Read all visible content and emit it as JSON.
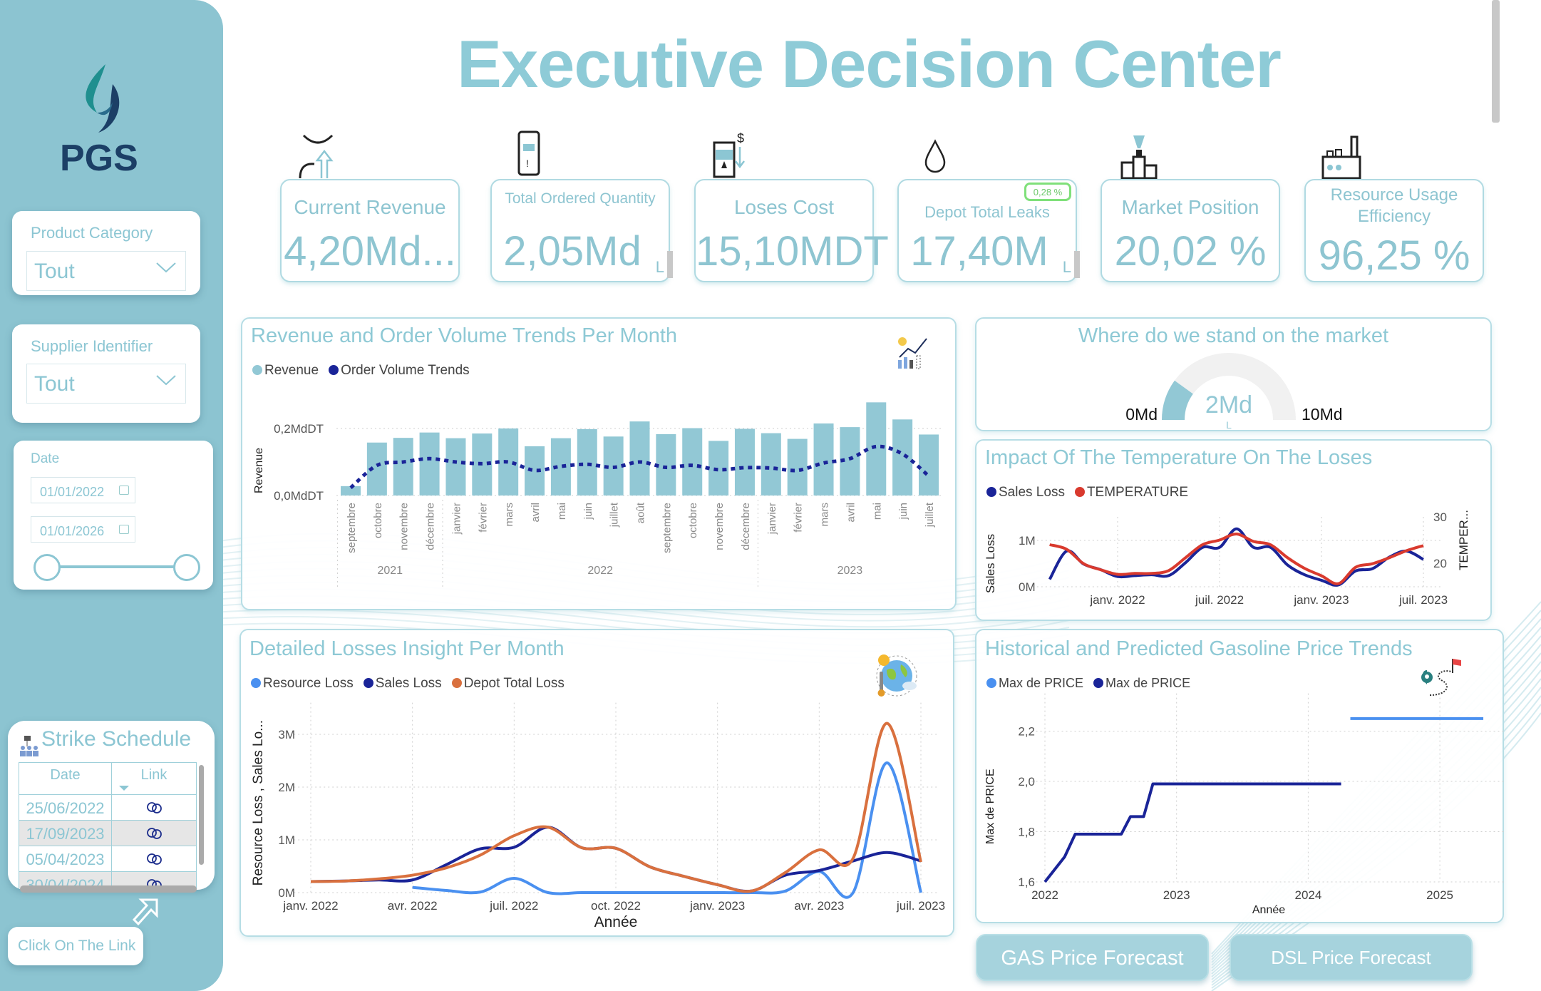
{
  "title": "Executive Decision Center",
  "brand": {
    "logo_text": "PGS"
  },
  "filters": {
    "product_category": {
      "label": "Product Category",
      "value": "Tout"
    },
    "supplier": {
      "label": "Supplier Identifier",
      "value": "Tout"
    },
    "date": {
      "label": "Date",
      "start": "01/01/2022",
      "end": "01/01/2026",
      "range_fraction": [
        0,
        1
      ]
    }
  },
  "strike_schedule": {
    "title": "Strike Schedule",
    "columns": [
      "Date",
      "Link"
    ],
    "rows": [
      {
        "date": "25/06/2022",
        "link_icon": "link-icon"
      },
      {
        "date": "17/09/2023",
        "link_icon": "link-icon"
      },
      {
        "date": "05/04/2023",
        "link_icon": "link-icon"
      }
    ],
    "hint_button": "Click On The Link"
  },
  "kpis": [
    {
      "label": "Current Revenue",
      "value": "4,20Md...",
      "icon": "revenue-up-icon"
    },
    {
      "label": "Total Ordered Quantity",
      "value": "2,05Md",
      "icon": "phone-order-icon"
    },
    {
      "label": "Loses Cost",
      "value": "15,10MDT",
      "icon": "fuel-cost-icon"
    },
    {
      "label": "Depot Total Leaks",
      "value": "17,40M",
      "badge": "0,28 %",
      "icon": "drop-icon"
    },
    {
      "label": "Market Position",
      "value": "20,02 %",
      "icon": "podium-trophy-icon"
    },
    {
      "label": "Resource Usage Efficiency",
      "value": "96,25 %",
      "icon": "factory-icon"
    }
  ],
  "colors": {
    "accent": "#8ec9d5",
    "navy": "#1a2498",
    "red": "#d93a2e",
    "orange": "#d9703e",
    "light_blue": "#4a90f0",
    "bar": "#92c8d5"
  },
  "buttons": {
    "gas": "GAS Price Forecast",
    "dsl": "DSL Price Forecast"
  },
  "chart_data": [
    {
      "type": "bar",
      "title": "Revenue and Order Volume Trends Per Month",
      "ylabel": "Revenue",
      "yticks": [
        "0,0MdDT",
        "0,2MdDT"
      ],
      "ylim": [
        0,
        0.3
      ],
      "legend": [
        "Revenue",
        "Order Volume Trends"
      ],
      "categories": [
        "septembre",
        "octobre",
        "novembre",
        "décembre",
        "janvier",
        "février",
        "mars",
        "avril",
        "mai",
        "juin",
        "juillet",
        "août",
        "septembre",
        "octobre",
        "novembre",
        "décembre",
        "janvier",
        "février",
        "mars",
        "avril",
        "mai",
        "juin",
        "juillet"
      ],
      "years": [
        {
          "label": "2021",
          "span": 4
        },
        {
          "label": "2022",
          "span": 12
        },
        {
          "label": "2023",
          "span": 7
        }
      ],
      "series": [
        {
          "name": "Revenue",
          "type": "bar",
          "values": [
            0.028,
            0.158,
            0.172,
            0.188,
            0.171,
            0.185,
            0.2,
            0.147,
            0.171,
            0.198,
            0.176,
            0.221,
            0.183,
            0.201,
            0.163,
            0.199,
            0.186,
            0.169,
            0.215,
            0.204,
            0.278,
            0.227,
            0.182
          ]
        },
        {
          "name": "Order Volume Trends",
          "type": "line-dashed",
          "values": [
            0.023,
            0.09,
            0.1,
            0.11,
            0.1,
            0.095,
            0.1,
            0.075,
            0.087,
            0.093,
            0.084,
            0.1,
            0.084,
            0.09,
            0.077,
            0.083,
            0.082,
            0.075,
            0.097,
            0.11,
            0.146,
            0.124,
            0.058
          ]
        }
      ],
      "grid": true,
      "legend_position": "top-left"
    },
    {
      "type": "gauge",
      "title": "Where do we stand on the market",
      "value": 2,
      "value_label": "2Md",
      "target_marker": "L",
      "min": 0,
      "max": 10,
      "min_label": "0Md",
      "max_label": "10Md"
    },
    {
      "type": "line",
      "title": "Impact Of The Temperature On The Loses",
      "legend": [
        "Sales Loss",
        "TEMPERATURE"
      ],
      "ylabel": "Sales Loss",
      "y2label": "TEMPER...",
      "yticks": [
        "0M",
        "1M"
      ],
      "y2ticks": [
        "20",
        "30"
      ],
      "xticks": [
        "janv. 2022",
        "juil. 2022",
        "janv. 2023",
        "juil. 2023"
      ],
      "x": [
        "2021-09",
        "2021-10",
        "2021-11",
        "2021-12",
        "2022-01",
        "2022-02",
        "2022-03",
        "2022-04",
        "2022-05",
        "2022-06",
        "2022-07",
        "2022-08",
        "2022-09",
        "2022-10",
        "2022-11",
        "2022-12",
        "2023-01",
        "2023-02",
        "2023-03",
        "2023-04",
        "2023-05",
        "2023-06",
        "2023-07"
      ],
      "series": [
        {
          "name": "Sales Loss",
          "axis": "left",
          "unit": "M",
          "values": [
            0.16,
            0.77,
            0.49,
            0.37,
            0.22,
            0.24,
            0.26,
            0.24,
            0.52,
            0.85,
            0.85,
            1.25,
            0.85,
            0.85,
            0.47,
            0.26,
            0.14,
            0.04,
            0.34,
            0.39,
            0.64,
            0.77,
            0.59
          ]
        },
        {
          "name": "TEMPERATURE",
          "axis": "right",
          "values": [
            24.0,
            23.0,
            19.9,
            18.6,
            17.6,
            17.8,
            17.8,
            18.4,
            21.2,
            24.0,
            25.0,
            26.3,
            24.7,
            24.0,
            21.2,
            18.9,
            17.3,
            15.6,
            19.1,
            19.9,
            21.2,
            22.7,
            23.8
          ]
        }
      ],
      "grid": true,
      "legend_position": "top-left"
    },
    {
      "type": "line",
      "title": "Detailed Losses Insight Per Month",
      "legend": [
        "Resource Loss",
        "Sales Loss",
        "Depot Total Loss"
      ],
      "ylabel": "Resource Loss , Sales Lo...",
      "xlabel": "Année",
      "yticks": [
        "0M",
        "1M",
        "2M",
        "3M"
      ],
      "xticks": [
        "janv. 2022",
        "avr. 2022",
        "juil. 2022",
        "oct. 2022",
        "janv. 2023",
        "avr. 2023",
        "juil. 2023"
      ],
      "x": [
        "2022-01",
        "2022-02",
        "2022-03",
        "2022-04",
        "2022-05",
        "2022-06",
        "2022-07",
        "2022-08",
        "2022-09",
        "2022-10",
        "2022-11",
        "2022-12",
        "2023-01",
        "2023-02",
        "2023-03",
        "2023-04",
        "2023-05",
        "2023-06",
        "2023-07"
      ],
      "series": [
        {
          "name": "Resource Loss",
          "unit": "M",
          "values": [
            null,
            null,
            null,
            0.1,
            0.04,
            0.01,
            0.27,
            0,
            0,
            0,
            0,
            0,
            0,
            0,
            0.03,
            0.4,
            0,
            2.46,
            0
          ]
        },
        {
          "name": "Sales Loss",
          "unit": "M",
          "values": [
            0.21,
            0.22,
            0.24,
            0.24,
            0.53,
            0.83,
            0.86,
            1.24,
            0.85,
            0.84,
            0.49,
            0.31,
            0.15,
            0.03,
            0.33,
            0.42,
            0.6,
            0.76,
            0.6
          ]
        },
        {
          "name": "Depot Total Loss",
          "unit": "M",
          "values": [
            0.21,
            0.22,
            0.26,
            0.33,
            0.47,
            0.71,
            1.08,
            1.24,
            0.85,
            0.84,
            0.49,
            0.31,
            0.15,
            0.03,
            0.38,
            0.81,
            0.65,
            3.21,
            0.58
          ]
        }
      ],
      "grid": true,
      "legend_position": "top-left"
    },
    {
      "type": "line",
      "title": "Historical and Predicted Gasoline Price Trends",
      "legend": [
        "Max de PRICE",
        "Max de PRICE"
      ],
      "ylabel": "Max de PRICE",
      "xlabel": "Année",
      "yticks": [
        "1,6",
        "1,8",
        "2,0",
        "2,2"
      ],
      "xticks": [
        "2022",
        "2023",
        "2024",
        "2025"
      ],
      "ylim": [
        1.6,
        2.3
      ],
      "series": [
        {
          "name": "Max de PRICE",
          "role": "predicted",
          "points": [
            [
              2024.32,
              2.25
            ],
            [
              2025.33,
              2.25
            ]
          ]
        },
        {
          "name": "Max de PRICE",
          "role": "historical",
          "points": [
            [
              2022.0,
              1.6
            ],
            [
              2022.15,
              1.7
            ],
            [
              2022.23,
              1.79
            ],
            [
              2022.58,
              1.79
            ],
            [
              2022.65,
              1.86
            ],
            [
              2022.75,
              1.86
            ],
            [
              2022.82,
              1.99
            ],
            [
              2024.25,
              1.99
            ]
          ]
        }
      ],
      "grid": true,
      "legend_position": "top-left"
    }
  ]
}
